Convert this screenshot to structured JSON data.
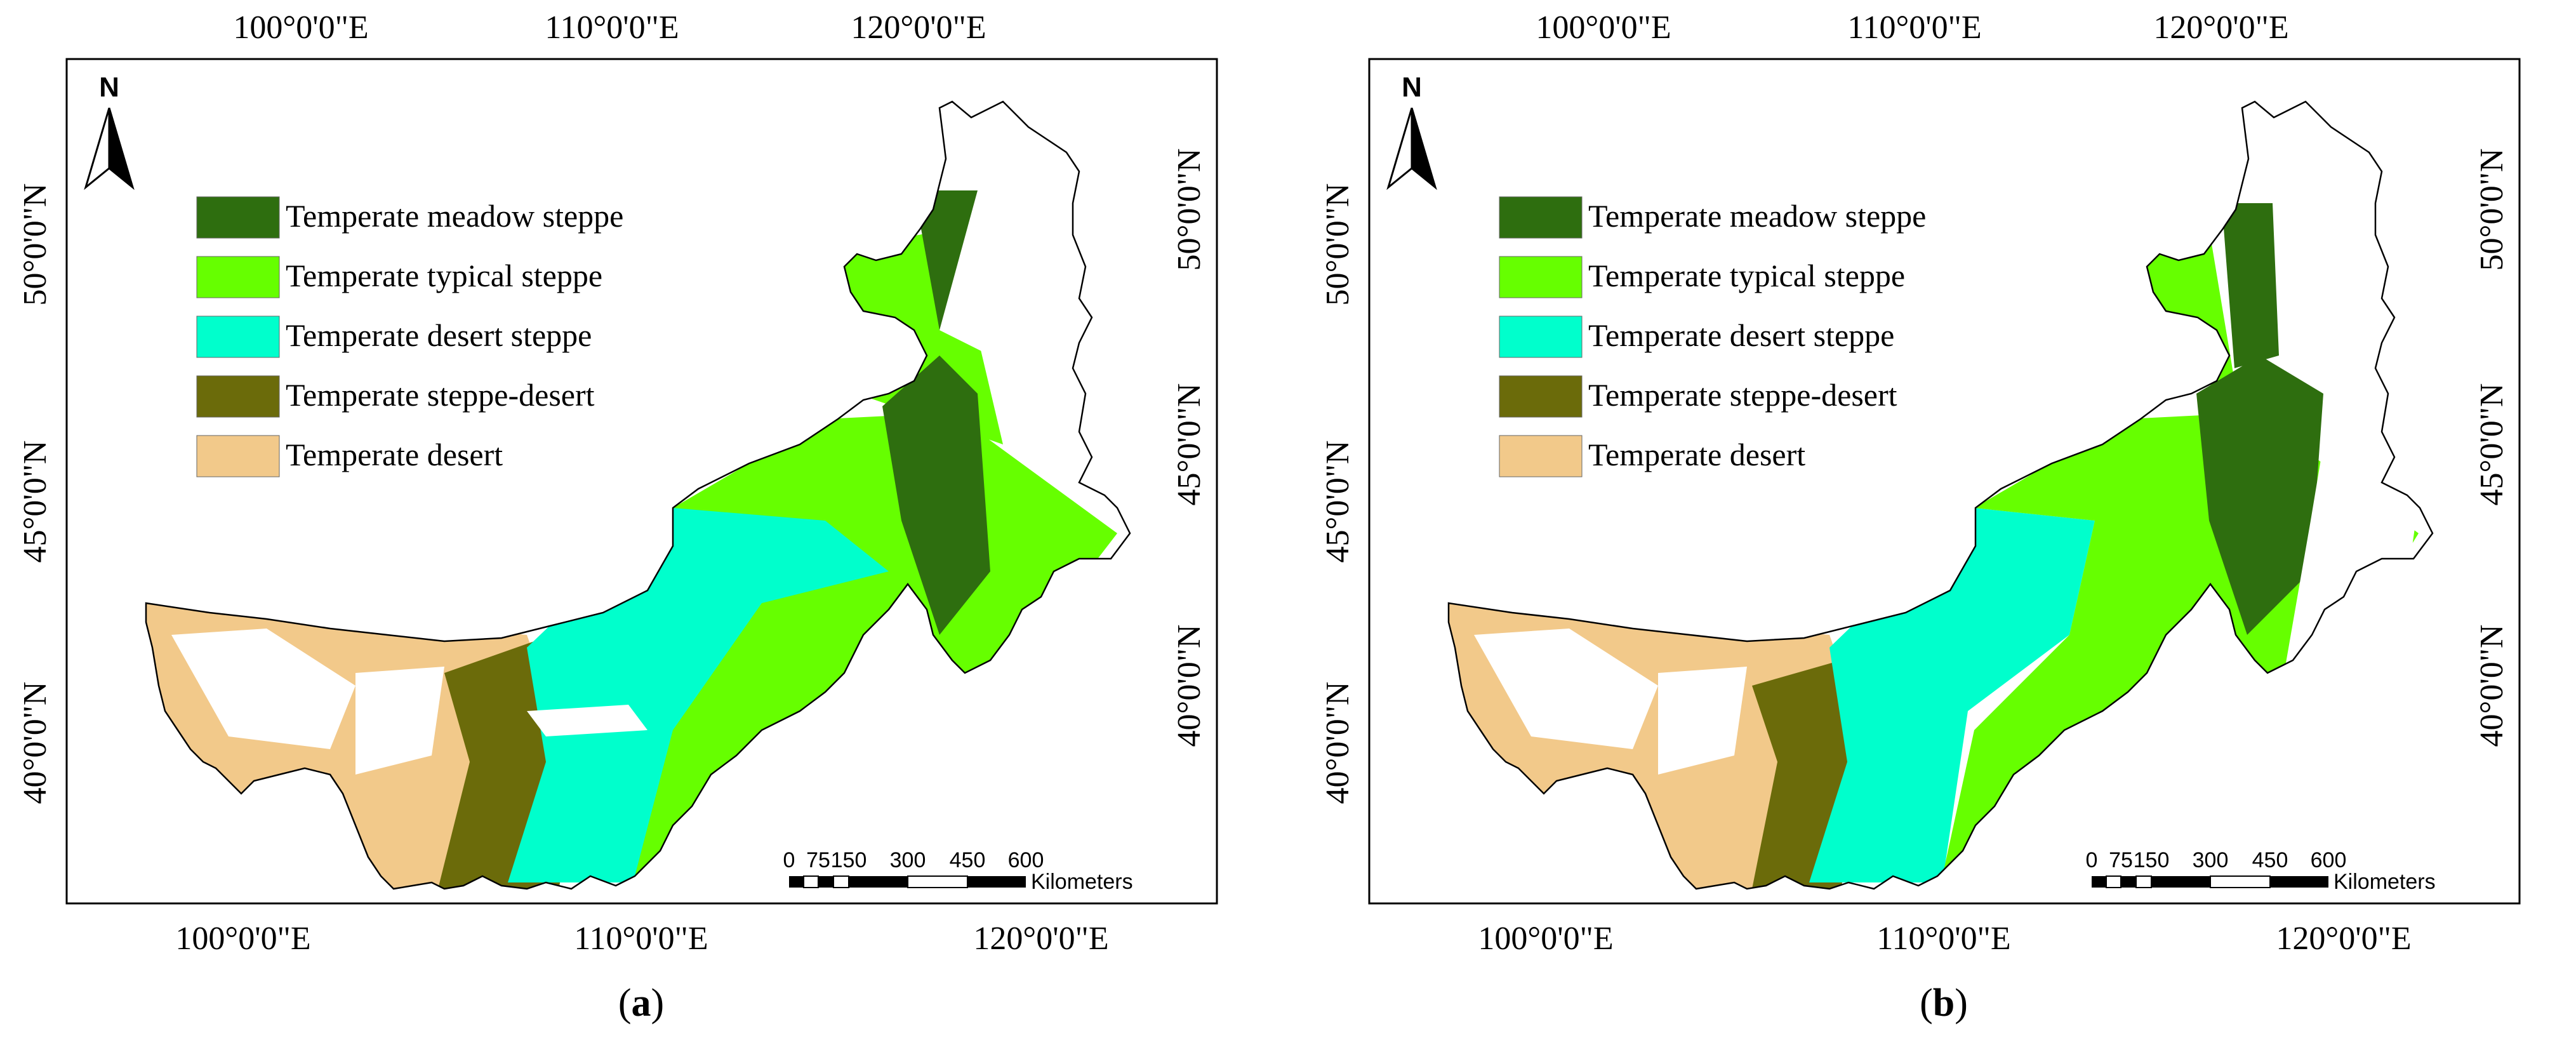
{
  "colors": {
    "meadow": "#2e6e0f",
    "typical": "#66ff00",
    "desert_steppe": "#00ffcc",
    "steppe_desert": "#6b6b0a",
    "desert": "#f2c98a",
    "frame": "#000000",
    "background": "#ffffff"
  },
  "panels": [
    {
      "id": "a",
      "caption_open": "(",
      "caption_letter": "a",
      "caption_close": ")",
      "top_lon_labels": [
        "100°0'0\"E",
        "110°0'0\"E",
        "120°0'0\"E"
      ],
      "bottom_lon_labels": [
        "100°0'0\"E",
        "110°0'0\"E",
        "120°0'0\"E"
      ],
      "left_lat_labels": [
        "50°0'0\"N",
        "45°0'0\"N",
        "40°0'0\"N"
      ],
      "right_lat_labels": [
        "50°0'0\"N",
        "45°0'0\"N",
        "40°0'0\"N"
      ],
      "north_label": "N",
      "north_icon": "north-arrow-icon",
      "legend": [
        {
          "label": "Temperate meadow steppe",
          "color_key": "meadow"
        },
        {
          "label": "Temperate typical steppe",
          "color_key": "typical"
        },
        {
          "label": "Temperate desert steppe",
          "color_key": "desert_steppe"
        },
        {
          "label": "Temperate steppe-desert",
          "color_key": "steppe_desert"
        },
        {
          "label": "Temperate desert",
          "color_key": "desert"
        }
      ],
      "scale_ticks": [
        "0",
        "75",
        "150",
        "300",
        "450",
        "600"
      ],
      "scale_unit": "Kilometers"
    },
    {
      "id": "b",
      "caption_open": "(",
      "caption_letter": "b",
      "caption_close": ")",
      "top_lon_labels": [
        "100°0'0\"E",
        "110°0'0\"E",
        "120°0'0\"E"
      ],
      "bottom_lon_labels": [
        "100°0'0\"E",
        "110°0'0\"E",
        "120°0'0\"E"
      ],
      "left_lat_labels": [
        "50°0'0\"N",
        "45°0'0\"N",
        "40°0'0\"N"
      ],
      "right_lat_labels": [
        "50°0'0\"N",
        "45°0'0\"N",
        "40°0'0\"N"
      ],
      "north_label": "N",
      "north_icon": "north-arrow-icon",
      "legend": [
        {
          "label": "Temperate meadow steppe",
          "color_key": "meadow"
        },
        {
          "label": "Temperate typical steppe",
          "color_key": "typical"
        },
        {
          "label": "Temperate desert steppe",
          "color_key": "desert_steppe"
        },
        {
          "label": "Temperate steppe-desert",
          "color_key": "steppe_desert"
        },
        {
          "label": "Temperate desert",
          "color_key": "desert"
        }
      ],
      "scale_ticks": [
        "0",
        "75",
        "150",
        "300",
        "450",
        "600"
      ],
      "scale_unit": "Kilometers"
    }
  ]
}
